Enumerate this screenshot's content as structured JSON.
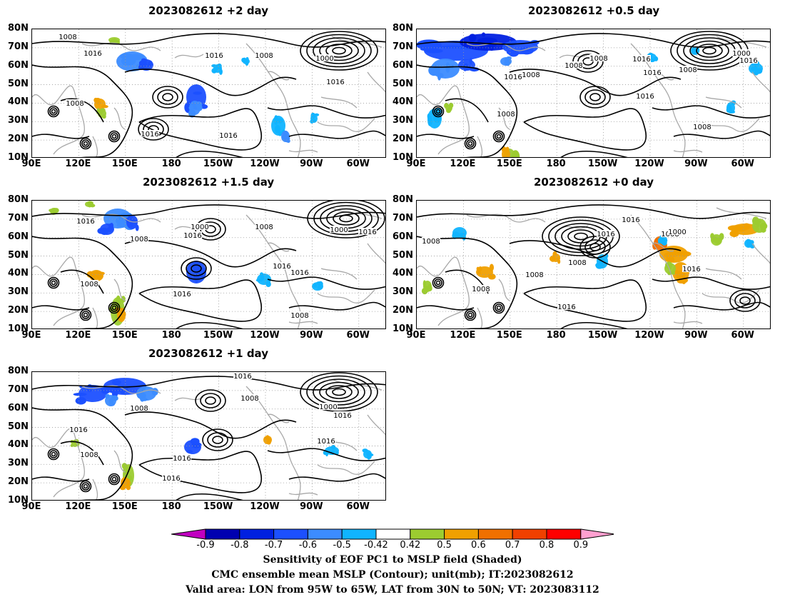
{
  "panels": [
    {
      "title": "2023082612  +2 day"
    },
    {
      "title": "2023082612  +0.5 day"
    },
    {
      "title": "2023082612  +1.5 day"
    },
    {
      "title": "2023082612  +0 day"
    },
    {
      "title": "2023082612  +1 day"
    }
  ],
  "lat_ticks": [
    "80N",
    "70N",
    "60N",
    "50N",
    "40N",
    "30N",
    "20N",
    "10N"
  ],
  "lon_ticks": [
    "90E",
    "120E",
    "150E",
    "180",
    "150W",
    "120W",
    "90W",
    "60W"
  ],
  "isobar_labels": [
    "1000",
    "1008",
    "1016"
  ],
  "colorbar": {
    "ticks": [
      "-0.9",
      "-0.8",
      "-0.7",
      "-0.6",
      "-0.5",
      "-0.42",
      "0.42",
      "0.5",
      "0.6",
      "0.7",
      "0.8",
      "0.9"
    ],
    "colors": [
      "#c000c0",
      "#0000b0",
      "#0020e0",
      "#1c50ff",
      "#3c8cff",
      "#10b4ff",
      "#ffffff",
      "#9ccc30",
      "#f0a000",
      "#f07000",
      "#f04000",
      "#ff0000",
      "#ffa0d0"
    ]
  },
  "caption": {
    "line1": "Sensitivity of EOF PC1 to MSLP field (Shaded)",
    "line2": "CMC ensemble mean MSLP (Contour); unit(mb); IT:2023082612",
    "line3": "Valid area: LON from 95W to 65W, LAT from 30N to 50N; VT: 2023083112"
  }
}
